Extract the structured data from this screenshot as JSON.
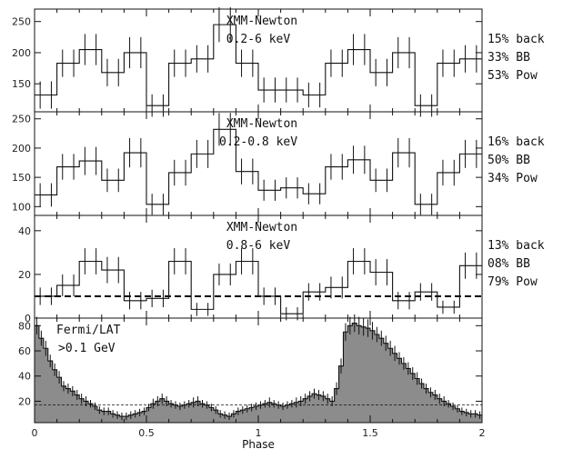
{
  "chart_data": [
    {
      "type": "histogram",
      "panel": 1,
      "title": "XMM-Newton",
      "subtitle": "0.2-6 keV",
      "side_labels": [
        "15% back",
        "33% BB",
        "53% Pow"
      ],
      "xlim": [
        0,
        2
      ],
      "ylim": [
        105,
        270
      ],
      "yticks": [
        150,
        200,
        250
      ],
      "ytick_labels": [
        "150",
        "200",
        "250"
      ],
      "x": [
        0.025,
        0.075,
        0.125,
        0.175,
        0.225,
        0.275,
        0.325,
        0.375,
        0.425,
        0.475,
        0.525,
        0.575,
        0.625,
        0.675,
        0.725,
        0.775,
        0.825,
        0.875,
        0.925,
        0.975,
        1.025,
        1.075,
        1.125,
        1.175,
        1.225,
        1.275,
        1.325,
        1.375,
        1.425,
        1.475,
        1.525,
        1.575,
        1.625,
        1.675,
        1.725,
        1.775,
        1.825,
        1.875,
        1.925,
        1.975
      ],
      "values": [
        132,
        132,
        183,
        183,
        205,
        205,
        168,
        168,
        200,
        200,
        115,
        115,
        183,
        183,
        190,
        190,
        245,
        245,
        183,
        183,
        140,
        140,
        140,
        140,
        132,
        132,
        183,
        183,
        205,
        205,
        168,
        168,
        200,
        200,
        115,
        115,
        183,
        183,
        190,
        190
      ],
      "errors": [
        22,
        22,
        22,
        22,
        25,
        25,
        22,
        22,
        25,
        25,
        18,
        18,
        22,
        22,
        22,
        22,
        28,
        28,
        22,
        22,
        20,
        20,
        20,
        20,
        20,
        20,
        22,
        22,
        25,
        25,
        22,
        22,
        25,
        25,
        18,
        18,
        22,
        22,
        22,
        22
      ]
    },
    {
      "type": "histogram",
      "panel": 2,
      "title": "XMM-Newton",
      "subtitle": "0.2-0.8 keV",
      "side_labels": [
        "16% back",
        "50% BB",
        "34% Pow"
      ],
      "xlim": [
        0,
        2
      ],
      "ylim": [
        85,
        262
      ],
      "yticks": [
        100,
        150,
        200,
        250
      ],
      "ytick_labels": [
        "100",
        "150",
        "200",
        "250"
      ],
      "x": [
        0.025,
        0.075,
        0.125,
        0.175,
        0.225,
        0.275,
        0.325,
        0.375,
        0.425,
        0.475,
        0.525,
        0.575,
        0.625,
        0.675,
        0.725,
        0.775,
        0.825,
        0.875,
        0.925,
        0.975,
        1.025,
        1.075,
        1.125,
        1.175,
        1.225,
        1.275,
        1.325,
        1.375,
        1.425,
        1.475,
        1.525,
        1.575,
        1.625,
        1.675,
        1.725,
        1.775,
        1.825,
        1.875,
        1.925,
        1.975
      ],
      "values": [
        120,
        120,
        168,
        168,
        178,
        178,
        145,
        145,
        192,
        192,
        104,
        104,
        158,
        158,
        190,
        190,
        232,
        232,
        160,
        160,
        128,
        128,
        132,
        132,
        122,
        122,
        168,
        168,
        180,
        180,
        145,
        145,
        192,
        192,
        104,
        104,
        158,
        158,
        190,
        190
      ],
      "errors": [
        20,
        20,
        22,
        22,
        24,
        24,
        20,
        20,
        25,
        25,
        18,
        18,
        22,
        22,
        24,
        24,
        28,
        28,
        22,
        22,
        18,
        18,
        18,
        18,
        18,
        18,
        22,
        22,
        24,
        24,
        20,
        20,
        25,
        25,
        18,
        18,
        22,
        22,
        24,
        24
      ]
    },
    {
      "type": "histogram",
      "panel": 3,
      "title": "XMM-Newton",
      "subtitle": "0.8-6 keV",
      "side_labels": [
        "13% back",
        "08% BB",
        "79% Pow"
      ],
      "xlim": [
        0,
        2
      ],
      "ylim": [
        0,
        47
      ],
      "yticks": [
        0,
        20,
        40
      ],
      "ytick_labels": [
        "0",
        "20",
        "40"
      ],
      "background_level": 10,
      "x": [
        0.025,
        0.075,
        0.125,
        0.175,
        0.225,
        0.275,
        0.325,
        0.375,
        0.425,
        0.475,
        0.525,
        0.575,
        0.625,
        0.675,
        0.725,
        0.775,
        0.825,
        0.875,
        0.925,
        0.975,
        1.025,
        1.075,
        1.125,
        1.175,
        1.225,
        1.275,
        1.325,
        1.375,
        1.425,
        1.475,
        1.525,
        1.575,
        1.625,
        1.675,
        1.725,
        1.775,
        1.825,
        1.875,
        1.925,
        1.975
      ],
      "values": [
        10,
        10,
        15,
        15,
        26,
        26,
        22,
        22,
        8,
        8,
        9,
        9,
        26,
        26,
        4,
        4,
        20,
        20,
        26,
        26,
        10,
        10,
        2,
        2,
        12,
        12,
        14,
        14,
        26,
        26,
        21,
        21,
        8,
        8,
        12,
        12,
        5,
        5,
        24,
        24
      ],
      "errors": [
        4,
        4,
        5,
        5,
        6,
        6,
        6,
        6,
        4,
        4,
        4,
        4,
        6,
        6,
        3,
        3,
        5,
        5,
        6,
        6,
        4,
        4,
        3,
        3,
        4,
        4,
        5,
        5,
        6,
        6,
        6,
        6,
        4,
        4,
        4,
        4,
        3,
        3,
        6,
        6
      ]
    },
    {
      "type": "histogram-filled",
      "panel": 4,
      "title": "Fermi/LAT",
      "subtitle": ">0.1 GeV",
      "xlabel": "Phase",
      "xlim": [
        0,
        2
      ],
      "ylim": [
        3,
        86
      ],
      "yticks": [
        20,
        40,
        60,
        80
      ],
      "ytick_labels": [
        "20",
        "40",
        "60",
        "80"
      ],
      "xticks": [
        0,
        0.5,
        1,
        1.5,
        2
      ],
      "xtick_labels": [
        "0",
        "0.5",
        "1",
        "1.5",
        "2"
      ],
      "background_level": 17,
      "values": [
        80,
        70,
        62,
        52,
        45,
        39,
        32,
        30,
        28,
        25,
        22,
        20,
        18,
        16,
        13,
        12,
        12,
        10,
        9,
        8,
        8,
        9,
        10,
        11,
        12,
        15,
        18,
        20,
        22,
        20,
        18,
        17,
        16,
        17,
        18,
        19,
        20,
        18,
        17,
        15,
        13,
        10,
        9,
        8,
        10,
        12,
        13,
        14,
        15,
        16,
        17,
        18,
        19,
        18,
        17,
        16,
        17,
        18,
        19,
        20,
        22,
        24,
        26,
        25,
        24,
        22,
        20,
        30,
        48,
        75,
        80,
        82,
        80,
        79,
        78,
        76,
        73,
        70,
        66,
        62,
        58,
        54,
        50,
        46,
        42,
        38,
        34,
        30,
        27,
        25,
        22,
        20,
        18,
        16,
        14,
        12,
        11,
        10,
        10,
        9
      ],
      "errors": [
        7,
        6,
        6,
        5,
        5,
        5,
        4,
        4,
        4,
        4,
        4,
        4,
        3,
        3,
        3,
        3,
        3,
        3,
        3,
        3,
        3,
        3,
        3,
        3,
        3,
        3,
        4,
        4,
        4,
        4,
        3,
        3,
        3,
        3,
        3,
        4,
        4,
        3,
        3,
        3,
        3,
        3,
        3,
        3,
        3,
        3,
        3,
        3,
        3,
        3,
        3,
        3,
        4,
        3,
        3,
        3,
        3,
        3,
        4,
        4,
        4,
        4,
        4,
        4,
        4,
        4,
        4,
        5,
        6,
        7,
        7,
        7,
        7,
        7,
        7,
        7,
        6,
        6,
        6,
        6,
        6,
        5,
        5,
        5,
        5,
        5,
        4,
        4,
        4,
        4,
        4,
        4,
        3,
        3,
        3,
        3,
        3,
        3,
        3,
        3
      ]
    }
  ]
}
